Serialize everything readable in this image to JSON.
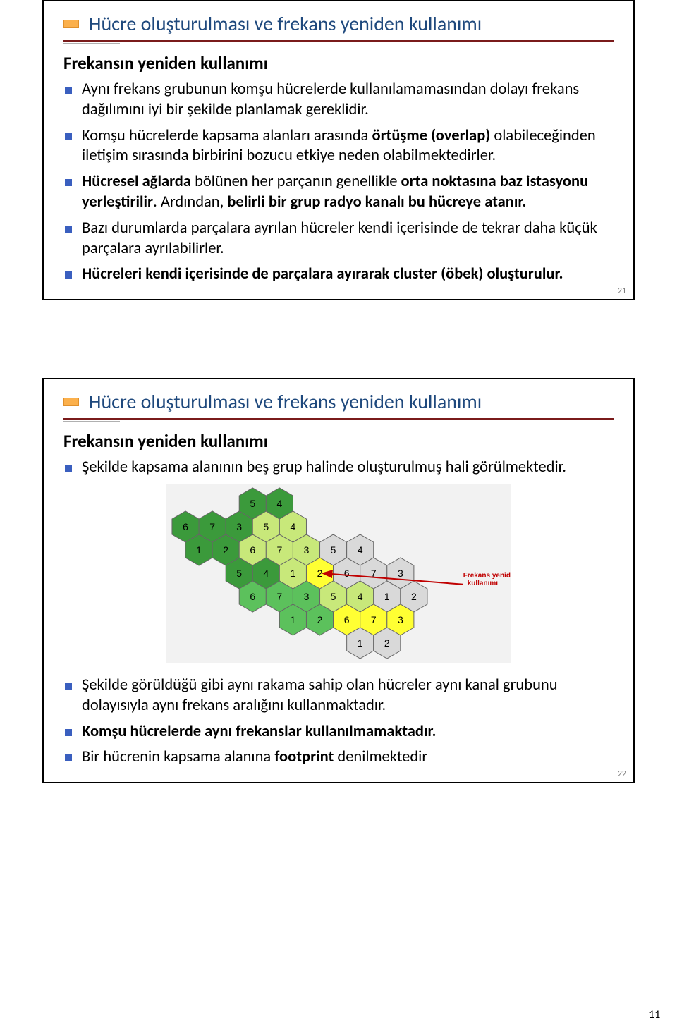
{
  "page_number": "11",
  "slide1": {
    "number": "21",
    "title": "Hücre oluşturulması ve frekans yeniden kullanımı",
    "subhead": "Frekansın yeniden kullanımı",
    "bullets": [
      {
        "segments": [
          {
            "t": "Aynı frekans grubunun komşu hücrelerde kullanılamamasından dolayı frekans dağılımını iyi bir şekilde planlamak gereklidir."
          }
        ]
      },
      {
        "segments": [
          {
            "t": "Komşu hücrelerde kapsama alanları arasında ",
            "b": false
          },
          {
            "t": "örtüşme (overlap) ",
            "b": true
          },
          {
            "t": "olabileceğinden iletişim sırasında birbirini bozucu etkiye neden olabilmektedirler."
          }
        ]
      },
      {
        "segments": [
          {
            "t": "Hücresel ağlarda ",
            "b": true
          },
          {
            "t": "bölünen her parçanın genellikle "
          },
          {
            "t": "orta noktasına baz istasyonu yerleştirilir",
            "b": true
          },
          {
            "t": ". Ardından, "
          },
          {
            "t": "belirli bir grup radyo kanalı bu hücreye atanır.",
            "b": true
          }
        ]
      },
      {
        "segments": [
          {
            "t": "Bazı durumlarda parçalara ayrılan hücreler kendi içerisinde de tekrar daha küçük parçalara ayrılabilirler."
          }
        ]
      },
      {
        "segments": [
          {
            "t": "Hücreleri kendi içerisinde de parçalara ayırarak cluster (öbek) oluşturulur.",
            "b": true
          }
        ]
      }
    ]
  },
  "slide2": {
    "number": "22",
    "title": "Hücre oluşturulması ve frekans yeniden kullanımı",
    "subhead": "Frekansın yeniden kullanımı",
    "intro": {
      "segments": [
        {
          "t": "Şekilde kapsama alanının beş grup halinde oluşturulmuş hali görülmektedir."
        }
      ]
    },
    "bullets": [
      {
        "segments": [
          {
            "t": "Şekilde görüldüğü gibi aynı rakama sahip olan hücreler aynı kanal grubunu dolayısıyla aynı frekans aralığını kullanmaktadır."
          }
        ]
      },
      {
        "segments": [
          {
            "t": "Komşu hücrelerde aynı frekanslar kullanılmamaktadır.",
            "b": true
          }
        ]
      },
      {
        "segments": [
          {
            "t": "Bir hücrenin kapsama alanına "
          },
          {
            "t": "footprint",
            "b": true
          },
          {
            "t": " denilmektedir"
          }
        ]
      }
    ],
    "annotation": "Frekans yeniden kullanımı"
  },
  "hex_diagram": {
    "colors": {
      "dark_green": "#3b9a3b",
      "green": "#5cc15c",
      "lime": "#c8e87a",
      "yellow": "#ffff33",
      "gray": "#d9d9d9",
      "stroke": "#666666",
      "arrow": "#c00000",
      "bg": "#f2f2f2"
    },
    "radius": 22,
    "cells": [
      {
        "q": 0,
        "r": 3,
        "c": "dark_green",
        "n": "6"
      },
      {
        "q": 1,
        "r": 3,
        "c": "dark_green",
        "n": "7"
      },
      {
        "q": 2,
        "r": 3,
        "c": "dark_green",
        "n": "3"
      },
      {
        "q": 3,
        "r": 3,
        "c": "lime",
        "n": "5"
      },
      {
        "q": 0,
        "r": 2,
        "c": "dark_green",
        "n": "1"
      },
      {
        "q": 1,
        "r": 2,
        "c": "dark_green",
        "n": "2"
      },
      {
        "q": 2,
        "r": 2,
        "c": "lime",
        "n": "6"
      },
      {
        "q": 3,
        "r": 2,
        "c": "lime",
        "n": "7"
      },
      {
        "q": 4,
        "r": 2,
        "c": "lime",
        "n": "3"
      },
      {
        "q": 5,
        "r": 2,
        "c": "gray",
        "n": "5"
      },
      {
        "q": 6,
        "r": 2,
        "c": "gray",
        "n": "4"
      },
      {
        "q": 1,
        "r": 1,
        "c": "dark_green",
        "n": "5"
      },
      {
        "q": 2,
        "r": 1,
        "c": "dark_green",
        "n": "4"
      },
      {
        "q": 3,
        "r": 1,
        "c": "lime",
        "n": "1"
      },
      {
        "q": 4,
        "r": 1,
        "c": "yellow",
        "n": "2"
      },
      {
        "q": 5,
        "r": 1,
        "c": "gray",
        "n": "6"
      },
      {
        "q": 6,
        "r": 1,
        "c": "gray",
        "n": "7"
      },
      {
        "q": 7,
        "r": 1,
        "c": "gray",
        "n": "3"
      },
      {
        "q": 1,
        "r": 0,
        "c": "green",
        "n": "6"
      },
      {
        "q": 2,
        "r": 0,
        "c": "green",
        "n": "7"
      },
      {
        "q": 3,
        "r": 0,
        "c": "green",
        "n": "3"
      },
      {
        "q": 4,
        "r": 0,
        "c": "lime",
        "n": "5"
      },
      {
        "q": 5,
        "r": 0,
        "c": "lime",
        "n": "4"
      },
      {
        "q": 6,
        "r": 0,
        "c": "gray",
        "n": "1"
      },
      {
        "q": 7,
        "r": 0,
        "c": "gray",
        "n": "2"
      },
      {
        "q": 2,
        "r": -1,
        "c": "green",
        "n": "1"
      },
      {
        "q": 3,
        "r": -1,
        "c": "green",
        "n": "2"
      },
      {
        "q": 4,
        "r": -1,
        "c": "yellow",
        "n": "6"
      },
      {
        "q": 5,
        "r": -1,
        "c": "yellow",
        "n": "7"
      },
      {
        "q": 6,
        "r": -1,
        "c": "yellow",
        "n": "3"
      },
      {
        "q": 4,
        "r": -2,
        "c": "gray",
        "n": "1"
      },
      {
        "q": 5,
        "r": -2,
        "c": "gray",
        "n": "2"
      },
      {
        "q": 3,
        "r": 4,
        "c": "dark_green",
        "n": "5"
      },
      {
        "q": 4,
        "r": 4,
        "c": "dark_green",
        "n": "4"
      },
      {
        "q": 4,
        "r": 3,
        "c": "lime",
        "n": "4"
      }
    ],
    "arrow": {
      "from_q": 7,
      "from_r": 0,
      "to_q": 4,
      "to_r": 1
    }
  }
}
